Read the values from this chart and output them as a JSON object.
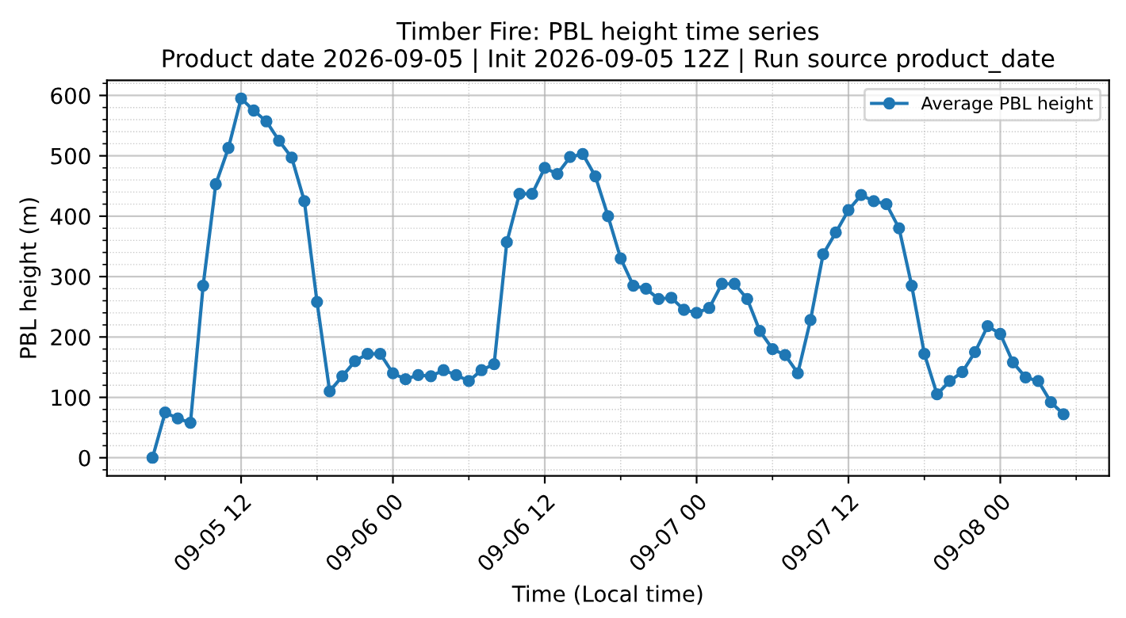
{
  "chart_data": {
    "type": "line",
    "title": "Timber Fire: PBL height time series\nProduct date 2026-09-05 | Init 2026-09-05 12Z | Run source product_date",
    "xlabel": "Time (Local time)",
    "ylabel": "PBL height (m)",
    "x": [
      "2026-09-05T05:00",
      "2026-09-05T06:00",
      "2026-09-05T07:00",
      "2026-09-05T08:00",
      "2026-09-05T09:00",
      "2026-09-05T10:00",
      "2026-09-05T11:00",
      "2026-09-05T12:00",
      "2026-09-05T13:00",
      "2026-09-05T14:00",
      "2026-09-05T15:00",
      "2026-09-05T16:00",
      "2026-09-05T17:00",
      "2026-09-05T18:00",
      "2026-09-05T19:00",
      "2026-09-05T20:00",
      "2026-09-05T21:00",
      "2026-09-05T22:00",
      "2026-09-05T23:00",
      "2026-09-06T00:00",
      "2026-09-06T01:00",
      "2026-09-06T02:00",
      "2026-09-06T03:00",
      "2026-09-06T04:00",
      "2026-09-06T05:00",
      "2026-09-06T06:00",
      "2026-09-06T07:00",
      "2026-09-06T08:00",
      "2026-09-06T09:00",
      "2026-09-06T10:00",
      "2026-09-06T11:00",
      "2026-09-06T12:00",
      "2026-09-06T13:00",
      "2026-09-06T14:00",
      "2026-09-06T15:00",
      "2026-09-06T16:00",
      "2026-09-06T17:00",
      "2026-09-06T18:00",
      "2026-09-06T19:00",
      "2026-09-06T20:00",
      "2026-09-06T21:00",
      "2026-09-06T22:00",
      "2026-09-06T23:00",
      "2026-09-07T00:00",
      "2026-09-07T01:00",
      "2026-09-07T02:00",
      "2026-09-07T03:00",
      "2026-09-07T04:00",
      "2026-09-07T05:00",
      "2026-09-07T06:00",
      "2026-09-07T07:00",
      "2026-09-07T08:00",
      "2026-09-07T09:00",
      "2026-09-07T10:00",
      "2026-09-07T11:00",
      "2026-09-07T12:00",
      "2026-09-07T13:00",
      "2026-09-07T14:00",
      "2026-09-07T15:00",
      "2026-09-07T16:00",
      "2026-09-07T17:00",
      "2026-09-07T18:00",
      "2026-09-07T19:00",
      "2026-09-07T20:00",
      "2026-09-07T21:00",
      "2026-09-07T22:00",
      "2026-09-07T23:00",
      "2026-09-08T00:00",
      "2026-09-08T01:00",
      "2026-09-08T02:00",
      "2026-09-08T03:00",
      "2026-09-08T04:00",
      "2026-09-08T05:00"
    ],
    "series": [
      {
        "name": "Average PBL height",
        "color": "#1f77b4",
        "values": [
          0,
          75,
          65,
          58,
          285,
          453,
          513,
          595,
          575,
          557,
          525,
          497,
          425,
          258,
          110,
          135,
          160,
          172,
          172,
          140,
          130,
          137,
          135,
          145,
          137,
          127,
          145,
          155,
          357,
          437,
          437,
          480,
          470,
          498,
          503,
          466,
          400,
          330,
          285,
          280,
          263,
          265,
          245,
          240,
          248,
          288,
          288,
          263,
          210,
          180,
          170,
          140,
          228,
          337,
          373,
          410,
          435,
          425,
          420,
          380,
          285,
          172,
          105,
          127,
          142,
          175,
          218,
          205,
          158,
          133,
          127,
          92,
          72
        ]
      }
    ],
    "xlim": [
      "2026-09-05T01:24",
      "2026-09-08T08:36"
    ],
    "xticks": [
      {
        "value": "2026-09-05T06:00",
        "label": null
      },
      {
        "value": "2026-09-05T12:00",
        "label": "09-05 12"
      },
      {
        "value": "2026-09-05T18:00",
        "label": null
      },
      {
        "value": "2026-09-06T00:00",
        "label": "09-06 00"
      },
      {
        "value": "2026-09-06T06:00",
        "label": null
      },
      {
        "value": "2026-09-06T12:00",
        "label": "09-06 12"
      },
      {
        "value": "2026-09-06T18:00",
        "label": null
      },
      {
        "value": "2026-09-07T00:00",
        "label": "09-07 00"
      },
      {
        "value": "2026-09-07T06:00",
        "label": null
      },
      {
        "value": "2026-09-07T12:00",
        "label": "09-07 12"
      },
      {
        "value": "2026-09-07T18:00",
        "label": null
      },
      {
        "value": "2026-09-08T00:00",
        "label": "09-08 00"
      },
      {
        "value": "2026-09-08T06:00",
        "label": null
      }
    ],
    "ylim": [
      -30,
      625
    ],
    "yticks": [
      {
        "value": -20,
        "label": null
      },
      0,
      {
        "value": 20,
        "label": null
      },
      {
        "value": 40,
        "label": null
      },
      {
        "value": 60,
        "label": null
      },
      {
        "value": 80,
        "label": null
      },
      100,
      {
        "value": 120,
        "label": null
      },
      {
        "value": 140,
        "label": null
      },
      {
        "value": 160,
        "label": null
      },
      {
        "value": 180,
        "label": null
      },
      200,
      {
        "value": 220,
        "label": null
      },
      {
        "value": 240,
        "label": null
      },
      {
        "value": 260,
        "label": null
      },
      {
        "value": 280,
        "label": null
      },
      300,
      {
        "value": 320,
        "label": null
      },
      {
        "value": 340,
        "label": null
      },
      {
        "value": 360,
        "label": null
      },
      {
        "value": 380,
        "label": null
      },
      400,
      {
        "value": 420,
        "label": null
      },
      {
        "value": 440,
        "label": null
      },
      {
        "value": 460,
        "label": null
      },
      {
        "value": 480,
        "label": null
      },
      500,
      {
        "value": 520,
        "label": null
      },
      {
        "value": 540,
        "label": null
      },
      {
        "value": 560,
        "label": null
      },
      {
        "value": 580,
        "label": null
      },
      600,
      {
        "value": 620,
        "label": null
      }
    ],
    "grid": true,
    "legend": "top right",
    "marker": "circle",
    "line_style": "solid"
  }
}
